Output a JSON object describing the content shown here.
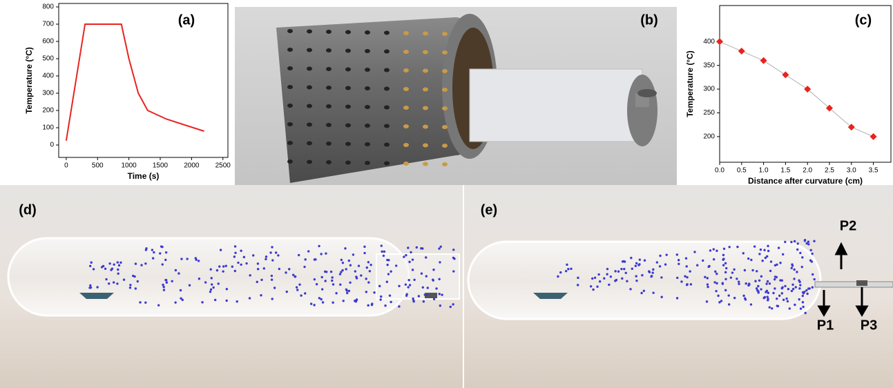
{
  "chart_data": [
    {
      "type": "line",
      "label": "(a)",
      "x_label": "Time (s)",
      "y_label": "Temperature (°C)",
      "x": [
        0,
        300,
        880,
        1000,
        1150,
        1300,
        1600,
        2200
      ],
      "values": [
        25,
        700,
        700,
        500,
        300,
        200,
        150,
        80
      ],
      "color": "#e8231e",
      "xlim": [
        -120,
        2580
      ],
      "xticks": [
        0,
        500,
        1000,
        1500,
        2000,
        2500
      ],
      "ylim": [
        -72,
        820
      ],
      "yticks": [
        0,
        100,
        200,
        300,
        400,
        500,
        600,
        700,
        800
      ],
      "grid": false
    },
    {
      "type": "scatter",
      "label": "(c)",
      "x_label": "Distance after curvature (cm)",
      "y_label": "Temperature (°C)",
      "x": [
        0,
        0.5,
        1,
        1.5,
        2,
        2.5,
        3,
        3.5
      ],
      "values": [
        400,
        380,
        360,
        330,
        300,
        260,
        220,
        200
      ],
      "color": "#e8231e",
      "line_color": "#b0b0b0",
      "xlim": [
        0,
        3.9
      ],
      "xticks": [
        {
          "value": 0,
          "label": "0.0"
        },
        {
          "value": 0.5,
          "label": "0.5"
        },
        {
          "value": 1,
          "label": "1.0"
        },
        {
          "value": 1.5,
          "label": "1.5"
        },
        {
          "value": 2,
          "label": "2.0"
        },
        {
          "value": 2.5,
          "label": "2.5"
        },
        {
          "value": 3,
          "label": "3.0"
        },
        {
          "value": 3.5,
          "label": "3.5"
        }
      ],
      "ylim": [
        146,
        476
      ],
      "yticks": [
        200,
        250,
        300,
        350,
        400
      ],
      "grid": false
    }
  ],
  "panels": {
    "b": "(b)",
    "d": "(d)",
    "e": "(e)",
    "p1": "P1",
    "p2": "P2",
    "p3": "P3"
  }
}
